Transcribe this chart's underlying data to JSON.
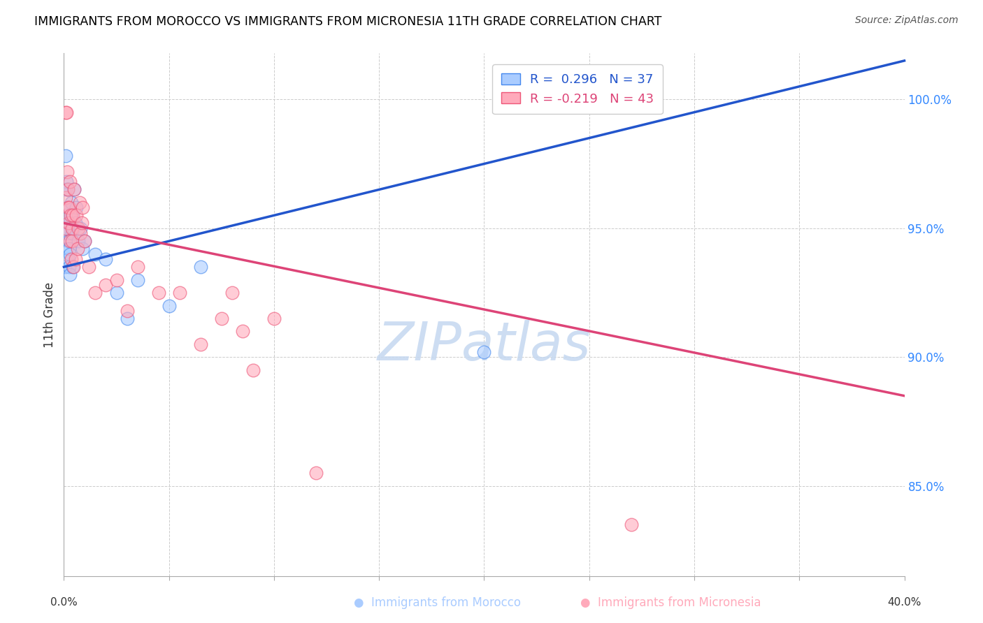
{
  "title": "IMMIGRANTS FROM MOROCCO VS IMMIGRANTS FROM MICRONESIA 11TH GRADE CORRELATION CHART",
  "source": "Source: ZipAtlas.com",
  "ylabel": "11th Grade",
  "xmin": 0.0,
  "xmax": 40.0,
  "ymin": 81.5,
  "ymax": 101.8,
  "yticks": [
    85.0,
    90.0,
    95.0,
    100.0
  ],
  "ytick_labels": [
    "85.0%",
    "90.0%",
    "95.0%",
    "100.0%"
  ],
  "legend_blue_r": "R =  0.296",
  "legend_blue_n": "N = 37",
  "legend_pink_r": "R = -0.219",
  "legend_pink_n": "N = 43",
  "blue_color": "#aaccff",
  "pink_color": "#ffaabb",
  "blue_edge_color": "#4488ee",
  "pink_edge_color": "#ee5577",
  "blue_line_color": "#2255cc",
  "pink_line_color": "#dd4477",
  "watermark": "ZIPatlas",
  "watermark_color": "#c5d8f0",
  "blue_line_x0": 0.0,
  "blue_line_y0": 93.5,
  "blue_line_x1": 40.0,
  "blue_line_y1": 101.5,
  "pink_line_x0": 0.0,
  "pink_line_y0": 95.2,
  "pink_line_x1": 40.0,
  "pink_line_y1": 88.5,
  "morocco_x": [
    0.05,
    0.08,
    0.08,
    0.1,
    0.12,
    0.15,
    0.15,
    0.18,
    0.18,
    0.2,
    0.22,
    0.22,
    0.25,
    0.25,
    0.28,
    0.3,
    0.3,
    0.35,
    0.38,
    0.4,
    0.42,
    0.45,
    0.5,
    0.55,
    0.6,
    0.7,
    0.8,
    0.9,
    1.0,
    1.5,
    2.0,
    2.5,
    3.0,
    3.5,
    5.0,
    6.5,
    20.0
  ],
  "morocco_y": [
    93.5,
    97.8,
    96.5,
    95.5,
    96.8,
    95.0,
    94.2,
    96.5,
    94.8,
    95.8,
    94.5,
    93.8,
    94.2,
    93.5,
    95.2,
    94.0,
    93.2,
    96.0,
    95.5,
    94.8,
    93.5,
    95.0,
    96.5,
    95.2,
    95.8,
    94.5,
    95.0,
    94.2,
    94.5,
    94.0,
    93.8,
    92.5,
    91.5,
    93.0,
    92.0,
    93.5,
    90.2
  ],
  "micronesia_x": [
    0.05,
    0.08,
    0.1,
    0.12,
    0.15,
    0.18,
    0.2,
    0.22,
    0.25,
    0.28,
    0.3,
    0.32,
    0.35,
    0.38,
    0.4,
    0.42,
    0.45,
    0.5,
    0.55,
    0.6,
    0.65,
    0.7,
    0.75,
    0.8,
    0.85,
    0.9,
    1.0,
    1.2,
    1.5,
    2.0,
    2.5,
    3.0,
    3.5,
    4.5,
    5.5,
    6.5,
    7.5,
    8.0,
    8.5,
    9.0,
    10.0,
    12.0,
    27.0
  ],
  "micronesia_y": [
    95.0,
    96.2,
    99.5,
    99.5,
    97.2,
    95.8,
    96.5,
    95.2,
    95.8,
    96.8,
    94.5,
    95.5,
    93.8,
    95.0,
    94.5,
    95.5,
    93.5,
    96.5,
    93.8,
    95.5,
    94.2,
    95.0,
    96.0,
    94.8,
    95.2,
    95.8,
    94.5,
    93.5,
    92.5,
    92.8,
    93.0,
    91.8,
    93.5,
    92.5,
    92.5,
    90.5,
    91.5,
    92.5,
    91.0,
    89.5,
    91.5,
    85.5,
    83.5
  ]
}
